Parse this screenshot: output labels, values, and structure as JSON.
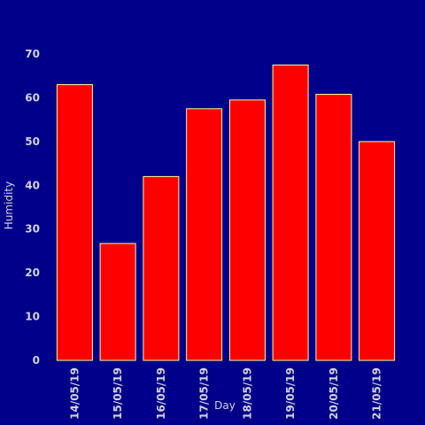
{
  "chart_data": {
    "type": "bar",
    "title": "",
    "xlabel": "Day",
    "ylabel": "Humidity",
    "categories": [
      "14/05/19",
      "15/05/19",
      "16/05/19",
      "17/05/19",
      "18/05/19",
      "19/05/19",
      "20/05/19",
      "21/05/19"
    ],
    "values": [
      63,
      26.7,
      42,
      57.5,
      59.5,
      67.5,
      60.8,
      50
    ],
    "ylim": [
      0,
      70
    ],
    "yticks": [
      0,
      10,
      20,
      30,
      40,
      50,
      60,
      70
    ],
    "grid": false,
    "legend": "none",
    "colors": {
      "background": "#00008B",
      "bar_fill": "#FF0000",
      "bar_edge": "#FFFF99",
      "text": "#D3D3D3"
    }
  }
}
